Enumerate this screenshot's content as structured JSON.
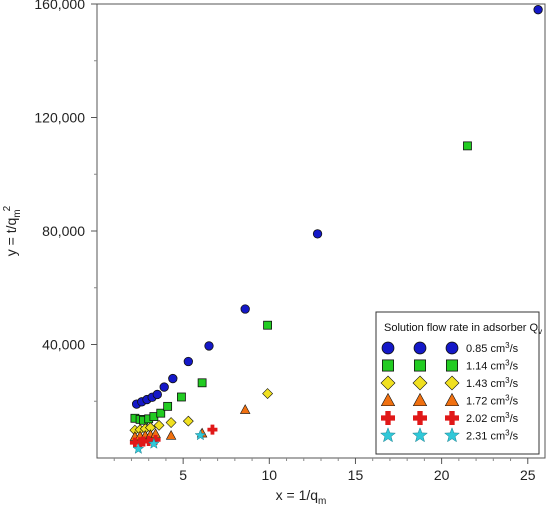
{
  "chart_data": {
    "type": "scatter",
    "xlabel": "x = 1/q_m",
    "ylabel": "y = t/q_m^2",
    "xlim": [
      0,
      26
    ],
    "ylim": [
      0,
      160000
    ],
    "x_ticks": [
      5,
      10,
      15,
      20,
      25
    ],
    "x_tick_labels": [
      "5",
      "10",
      "15",
      "20",
      "25"
    ],
    "y_ticks": [
      40000,
      80000,
      120000,
      160000
    ],
    "y_tick_labels": [
      "40,000",
      "80,000",
      "120,000",
      "160,000"
    ],
    "grid": false,
    "legend": {
      "title": "Solution flow rate in adsorber Q_v",
      "placement": "bottom-right",
      "unit_text": "cm³/s"
    },
    "series": [
      {
        "name": "0.85 cm³/s",
        "marker": "circle",
        "color": "#1418c8",
        "points": [
          [
            2.3,
            19000
          ],
          [
            2.6,
            19800
          ],
          [
            2.9,
            20600
          ],
          [
            3.2,
            21400
          ],
          [
            3.5,
            22400
          ],
          [
            3.9,
            25000
          ],
          [
            4.4,
            28000
          ],
          [
            5.3,
            34000
          ],
          [
            6.5,
            39500
          ],
          [
            8.6,
            52500
          ],
          [
            12.8,
            79000
          ],
          [
            25.6,
            158000
          ]
        ]
      },
      {
        "name": "1.14 cm³/s",
        "marker": "square",
        "color": "#22cc22",
        "points": [
          [
            2.2,
            14000
          ],
          [
            2.5,
            13600
          ],
          [
            2.7,
            13300
          ],
          [
            3.0,
            13800
          ],
          [
            3.3,
            14600
          ],
          [
            3.7,
            15800
          ],
          [
            4.1,
            18200
          ],
          [
            4.9,
            21500
          ],
          [
            6.1,
            26500
          ],
          [
            9.9,
            46800
          ],
          [
            21.5,
            110000
          ]
        ]
      },
      {
        "name": "1.43 cm³/s",
        "marker": "diamond",
        "color": "#f0e020",
        "points": [
          [
            2.2,
            9800
          ],
          [
            2.5,
            10000
          ],
          [
            2.8,
            10300
          ],
          [
            3.1,
            10700
          ],
          [
            3.6,
            11500
          ],
          [
            4.3,
            12500
          ],
          [
            5.3,
            13000
          ],
          [
            9.9,
            22700
          ]
        ]
      },
      {
        "name": "1.72 cm³/s",
        "marker": "triangle",
        "color": "#f07010",
        "points": [
          [
            2.2,
            7500
          ],
          [
            2.5,
            7700
          ],
          [
            2.8,
            7900
          ],
          [
            3.1,
            8200
          ],
          [
            3.4,
            8500
          ],
          [
            4.3,
            7900
          ],
          [
            6.1,
            8700
          ],
          [
            8.6,
            17000
          ]
        ]
      },
      {
        "name": "2.02 cm³/s",
        "marker": "plus",
        "color": "#e01818",
        "points": [
          [
            2.2,
            5400
          ],
          [
            2.5,
            5600
          ],
          [
            2.7,
            5800
          ],
          [
            3.0,
            6000
          ],
          [
            3.4,
            6400
          ],
          [
            6.7,
            10000
          ]
        ]
      },
      {
        "name": "2.31 cm³/s",
        "marker": "star",
        "color": "#30c8d8",
        "points": [
          [
            2.4,
            3200
          ],
          [
            3.3,
            5000
          ],
          [
            6.0,
            8000
          ]
        ]
      }
    ]
  }
}
